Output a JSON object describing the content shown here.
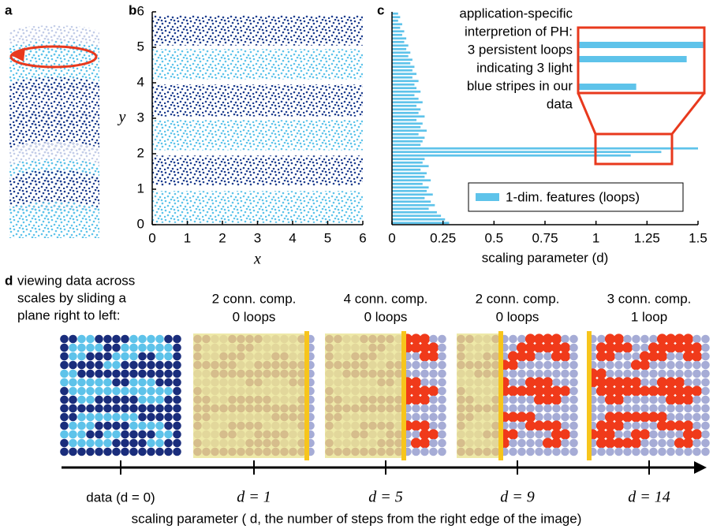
{
  "panel_a": {
    "label": "a"
  },
  "chart_data": [
    {
      "type": "scatter",
      "label": "b",
      "x_label": "x",
      "y_label": "y",
      "xlim": [
        0,
        6
      ],
      "ylim": [
        0,
        6
      ],
      "xticks": [
        0,
        1,
        2,
        3,
        4,
        5,
        6
      ],
      "yticks": [
        0,
        1,
        2,
        3,
        4,
        5,
        6
      ],
      "stripes": [
        {
          "ymin": 0.05,
          "ymax": 0.95,
          "color": "#5ec3ea"
        },
        {
          "ymin": 1.1,
          "ymax": 1.95,
          "color": "#1e3e8e"
        },
        {
          "ymin": 2.1,
          "ymax": 2.95,
          "color": "#5ec3ea"
        },
        {
          "ymin": 3.05,
          "ymax": 3.95,
          "color": "#1e3e8e"
        },
        {
          "ymin": 4.1,
          "ymax": 4.95,
          "color": "#5ec3ea"
        },
        {
          "ymin": 5.05,
          "ymax": 5.9,
          "color": "#1e3e8e"
        }
      ]
    },
    {
      "type": "barcode",
      "label": "c",
      "x_label": "scaling parameter (d)",
      "annotation": [
        "application-specific",
        "interpretion of PH:",
        "3 persistent loops",
        "indicating 3 light",
        "blue stripes in our",
        "data"
      ],
      "xlim": [
        0,
        1.5
      ],
      "xticks": [
        0,
        0.25,
        0.5,
        0.75,
        1,
        1.25,
        1.5
      ],
      "series": [
        {
          "name": "1-dim. features (loops)",
          "color": "#5ec3ea",
          "values": [
            0.03,
            0.04,
            0.03,
            0.05,
            0.04,
            0.06,
            0.05,
            0.07,
            0.06,
            0.08,
            0.07,
            0.09,
            0.08,
            0.1,
            0.09,
            0.11,
            0.1,
            0.12,
            0.1,
            0.13,
            0.11,
            0.12,
            0.14,
            0.11,
            0.13,
            0.15,
            0.12,
            0.14,
            0.13,
            0.16,
            0.12,
            0.15,
            0.14,
            0.17,
            0.13,
            0.16,
            0.15,
            0.14,
            1.5,
            1.32,
            1.17,
            0.16,
            0.15,
            0.18,
            0.14,
            0.17,
            0.16,
            0.19,
            0.15,
            0.18,
            0.17,
            0.2,
            0.16,
            0.19,
            0.21,
            0.18,
            0.22,
            0.24,
            0.26,
            0.28
          ]
        }
      ]
    }
  ],
  "panel_d": {
    "label": "d",
    "intro": [
      "viewing data across",
      "scales by sliding a",
      "plane right to left:"
    ],
    "image": [
      "00110000111100",
      "01111001111110",
      "01100011100110",
      "00000110000000",
      "11000000000000",
      "11111100111000",
      "01111111111110",
      "00110000011100",
      "00000000000000",
      "00111111100000",
      "01110000111100",
      "11100110000110",
      "01111100001100",
      "00000000000000"
    ],
    "data": {
      "d": 0,
      "tick_label": "data (d = 0)"
    },
    "frames": [
      {
        "title": [
          "2 conn. comp.",
          "0 loops"
        ],
        "d": 1,
        "tick_label": "d = 1"
      },
      {
        "title": [
          "4 conn. comp.",
          "0 loops"
        ],
        "d": 5,
        "tick_label": "d = 5"
      },
      {
        "title": [
          "2 conn. comp.",
          "0 loops"
        ],
        "d": 9,
        "tick_label": "d = 9"
      },
      {
        "title": [
          "3 conn. comp.",
          "1 loop"
        ],
        "d": 14,
        "tick_label": "d = 14"
      }
    ],
    "axis_label": "scaling parameter ( d, the number of steps from the right edge of the image)"
  }
}
